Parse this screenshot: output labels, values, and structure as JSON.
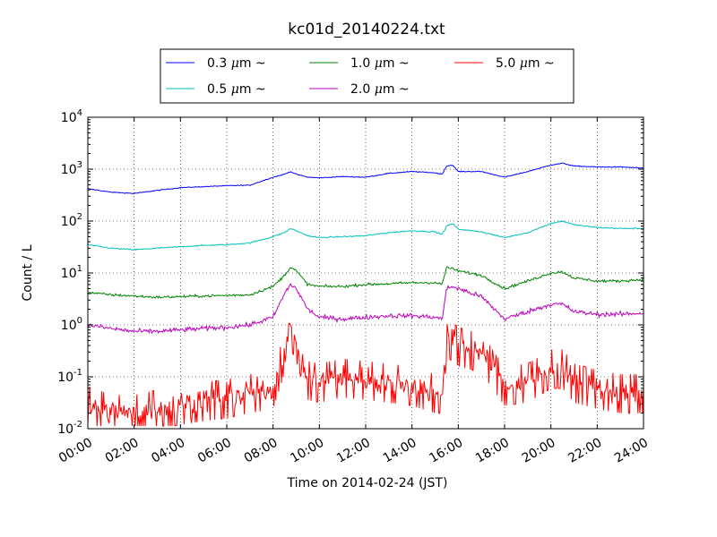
{
  "chart_data": {
    "type": "line",
    "title": "kc01d_20140224.txt",
    "xlabel": "Time on 2014-02-24 (JST)",
    "ylabel": "Count / L",
    "x_unit": "hours",
    "xlim": [
      0,
      24
    ],
    "ylim": [
      0.01,
      10000
    ],
    "yscale": "log",
    "grid": true,
    "legend_position": "top-center",
    "x_tick_labels": [
      "00:00",
      "02:00",
      "04:00",
      "06:00",
      "08:00",
      "10:00",
      "12:00",
      "14:00",
      "16:00",
      "18:00",
      "20:00",
      "22:00",
      "24:00"
    ],
    "y_tick_labels": [
      {
        "base": "10",
        "exp": "-2"
      },
      {
        "base": "10",
        "exp": "-1"
      },
      {
        "base": "10",
        "exp": "0"
      },
      {
        "base": "10",
        "exp": "1"
      },
      {
        "base": "10",
        "exp": "2"
      },
      {
        "base": "10",
        "exp": "3"
      },
      {
        "base": "10",
        "exp": "4"
      }
    ],
    "x": [
      0,
      1,
      2,
      3,
      4,
      5,
      6,
      7,
      8,
      8.5,
      8.75,
      9,
      9.5,
      10,
      11,
      12,
      13,
      14,
      15,
      15.3,
      15.5,
      15.75,
      16,
      17,
      18,
      19,
      20,
      20.5,
      21,
      22,
      23,
      24
    ],
    "series": [
      {
        "name": "0.3 μm ~",
        "color": "#0000ff",
        "values": [
          420,
          360,
          340,
          390,
          440,
          460,
          480,
          490,
          700,
          800,
          900,
          800,
          700,
          680,
          720,
          700,
          830,
          900,
          850,
          800,
          1150,
          1200,
          900,
          900,
          700,
          900,
          1200,
          1300,
          1150,
          1100,
          1100,
          1050
        ]
      },
      {
        "name": "0.5 μm ~",
        "color": "#00bfbf",
        "values": [
          35,
          30,
          28,
          30,
          32,
          34,
          35,
          38,
          50,
          60,
          72,
          65,
          52,
          48,
          50,
          52,
          60,
          65,
          62,
          55,
          80,
          90,
          70,
          62,
          48,
          60,
          90,
          100,
          85,
          75,
          72,
          72
        ]
      },
      {
        "name": "1.0 μm ~",
        "color": "#008000",
        "values": [
          4.2,
          3.8,
          3.6,
          3.4,
          3.5,
          3.6,
          3.7,
          3.8,
          5.5,
          9,
          13,
          11,
          6,
          5.5,
          5.5,
          6,
          6.2,
          6.5,
          6.5,
          6,
          13,
          12,
          11,
          9,
          5,
          7,
          10,
          10.5,
          8,
          7,
          7,
          7.5
        ]
      },
      {
        "name": "2.0 μm ~",
        "color": "#bf00bf",
        "values": [
          1.0,
          0.85,
          0.75,
          0.75,
          0.8,
          0.85,
          0.9,
          1.0,
          1.4,
          4,
          6,
          5,
          2,
          1.4,
          1.3,
          1.4,
          1.5,
          1.5,
          1.4,
          1.3,
          5,
          5.5,
          5,
          3.5,
          1.3,
          1.8,
          2.5,
          2.5,
          1.8,
          1.6,
          1.6,
          1.7
        ]
      },
      {
        "name": "5.0 μm ~",
        "color": "#ff0000",
        "values": [
          0.03,
          0.02,
          0.02,
          0.025,
          0.03,
          0.035,
          0.04,
          0.05,
          0.06,
          0.3,
          0.9,
          0.5,
          0.09,
          0.08,
          0.1,
          0.09,
          0.08,
          0.07,
          0.05,
          0.05,
          0.6,
          0.5,
          0.4,
          0.3,
          0.07,
          0.08,
          0.15,
          0.15,
          0.08,
          0.06,
          0.05,
          0.05
        ]
      }
    ]
  }
}
